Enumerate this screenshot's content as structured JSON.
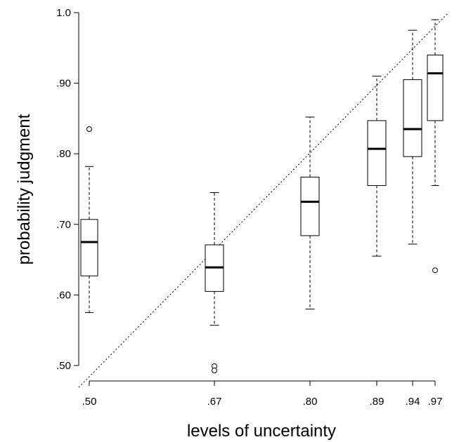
{
  "chart_data": {
    "type": "boxplot",
    "xlabel": "levels of uncertainty",
    "ylabel": "probability judgment",
    "xlim": [
      0.485,
      1.0
    ],
    "ylim": [
      0.49,
      1.0
    ],
    "x_ticks": [
      0.5,
      0.67,
      0.8,
      0.89,
      0.94,
      0.97
    ],
    "x_tick_labels": [
      ".50",
      ".67",
      ".80",
      ".89",
      ".94",
      ".97"
    ],
    "y_ticks": [
      0.5,
      0.6,
      0.7,
      0.8,
      0.9,
      1.0
    ],
    "y_tick_labels": [
      ".50",
      ".60",
      ".70",
      ".80",
      ".90",
      "1.0"
    ],
    "reference_line": {
      "style": "dotted",
      "from": [
        0.485,
        0.485
      ],
      "to": [
        1.0,
        1.0
      ]
    },
    "boxes": [
      {
        "x": 0.5,
        "whisker_low": 0.575,
        "q1": 0.627,
        "median": 0.675,
        "q3": 0.707,
        "whisker_high": 0.782,
        "outliers": [
          0.835
        ]
      },
      {
        "x": 0.67,
        "whisker_low": 0.557,
        "q1": 0.605,
        "median": 0.639,
        "q3": 0.671,
        "whisker_high": 0.745,
        "outliers": [
          0.499,
          0.493
        ]
      },
      {
        "x": 0.8,
        "whisker_low": 0.58,
        "q1": 0.684,
        "median": 0.732,
        "q3": 0.767,
        "whisker_high": 0.852,
        "outliers": []
      },
      {
        "x": 0.89,
        "whisker_low": 0.655,
        "q1": 0.755,
        "median": 0.807,
        "q3": 0.847,
        "whisker_high": 0.91,
        "outliers": []
      },
      {
        "x": 0.94,
        "whisker_low": 0.672,
        "q1": 0.796,
        "median": 0.835,
        "q3": 0.905,
        "whisker_high": 0.975,
        "outliers": []
      },
      {
        "x": 0.97,
        "whisker_low": 0.755,
        "q1": 0.847,
        "median": 0.914,
        "q3": 0.94,
        "whisker_high": 0.99,
        "outliers": [
          0.635
        ]
      }
    ]
  }
}
